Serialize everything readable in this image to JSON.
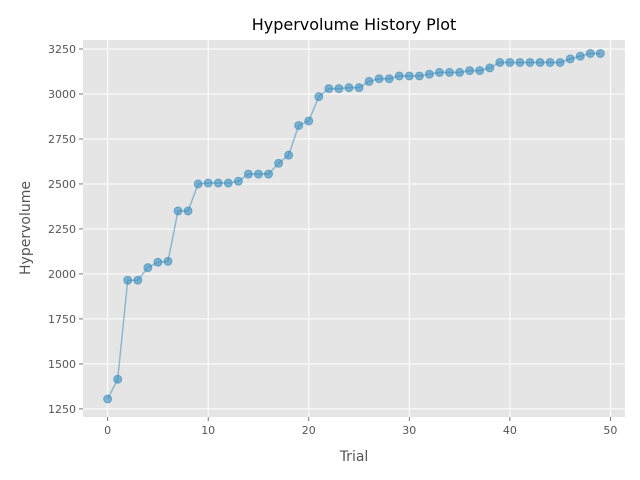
{
  "chart_data": {
    "type": "line",
    "title": "Hypervolume History Plot",
    "xlabel": "Trial",
    "ylabel": "Hypervolume",
    "xlim": [
      -2.45,
      51.45
    ],
    "ylim": [
      1205,
      3300
    ],
    "xticks": [
      0,
      10,
      20,
      30,
      40,
      50
    ],
    "yticks": [
      1250,
      1500,
      1750,
      2000,
      2250,
      2500,
      2750,
      3000,
      3250
    ],
    "grid": true,
    "background": "#E5E5E5",
    "series": [
      {
        "color": "#348ABD",
        "x": [
          0,
          1,
          2,
          3,
          4,
          5,
          6,
          7,
          8,
          9,
          10,
          11,
          12,
          13,
          14,
          15,
          16,
          17,
          18,
          19,
          20,
          21,
          22,
          23,
          24,
          25,
          26,
          27,
          28,
          29,
          30,
          31,
          32,
          33,
          34,
          35,
          36,
          37,
          38,
          39,
          40,
          41,
          42,
          43,
          44,
          45,
          46,
          47,
          48,
          49
        ],
        "values": [
          1305,
          1415,
          1965,
          1965,
          2035,
          2065,
          2070,
          2350,
          2350,
          2500,
          2505,
          2505,
          2505,
          2515,
          2555,
          2555,
          2555,
          2615,
          2660,
          2825,
          2850,
          2985,
          3030,
          3030,
          3035,
          3035,
          3070,
          3085,
          3085,
          3100,
          3100,
          3100,
          3110,
          3120,
          3120,
          3120,
          3130,
          3130,
          3145,
          3175,
          3175,
          3175,
          3175,
          3175,
          3175,
          3175,
          3195,
          3210,
          3225,
          3225
        ]
      }
    ]
  }
}
